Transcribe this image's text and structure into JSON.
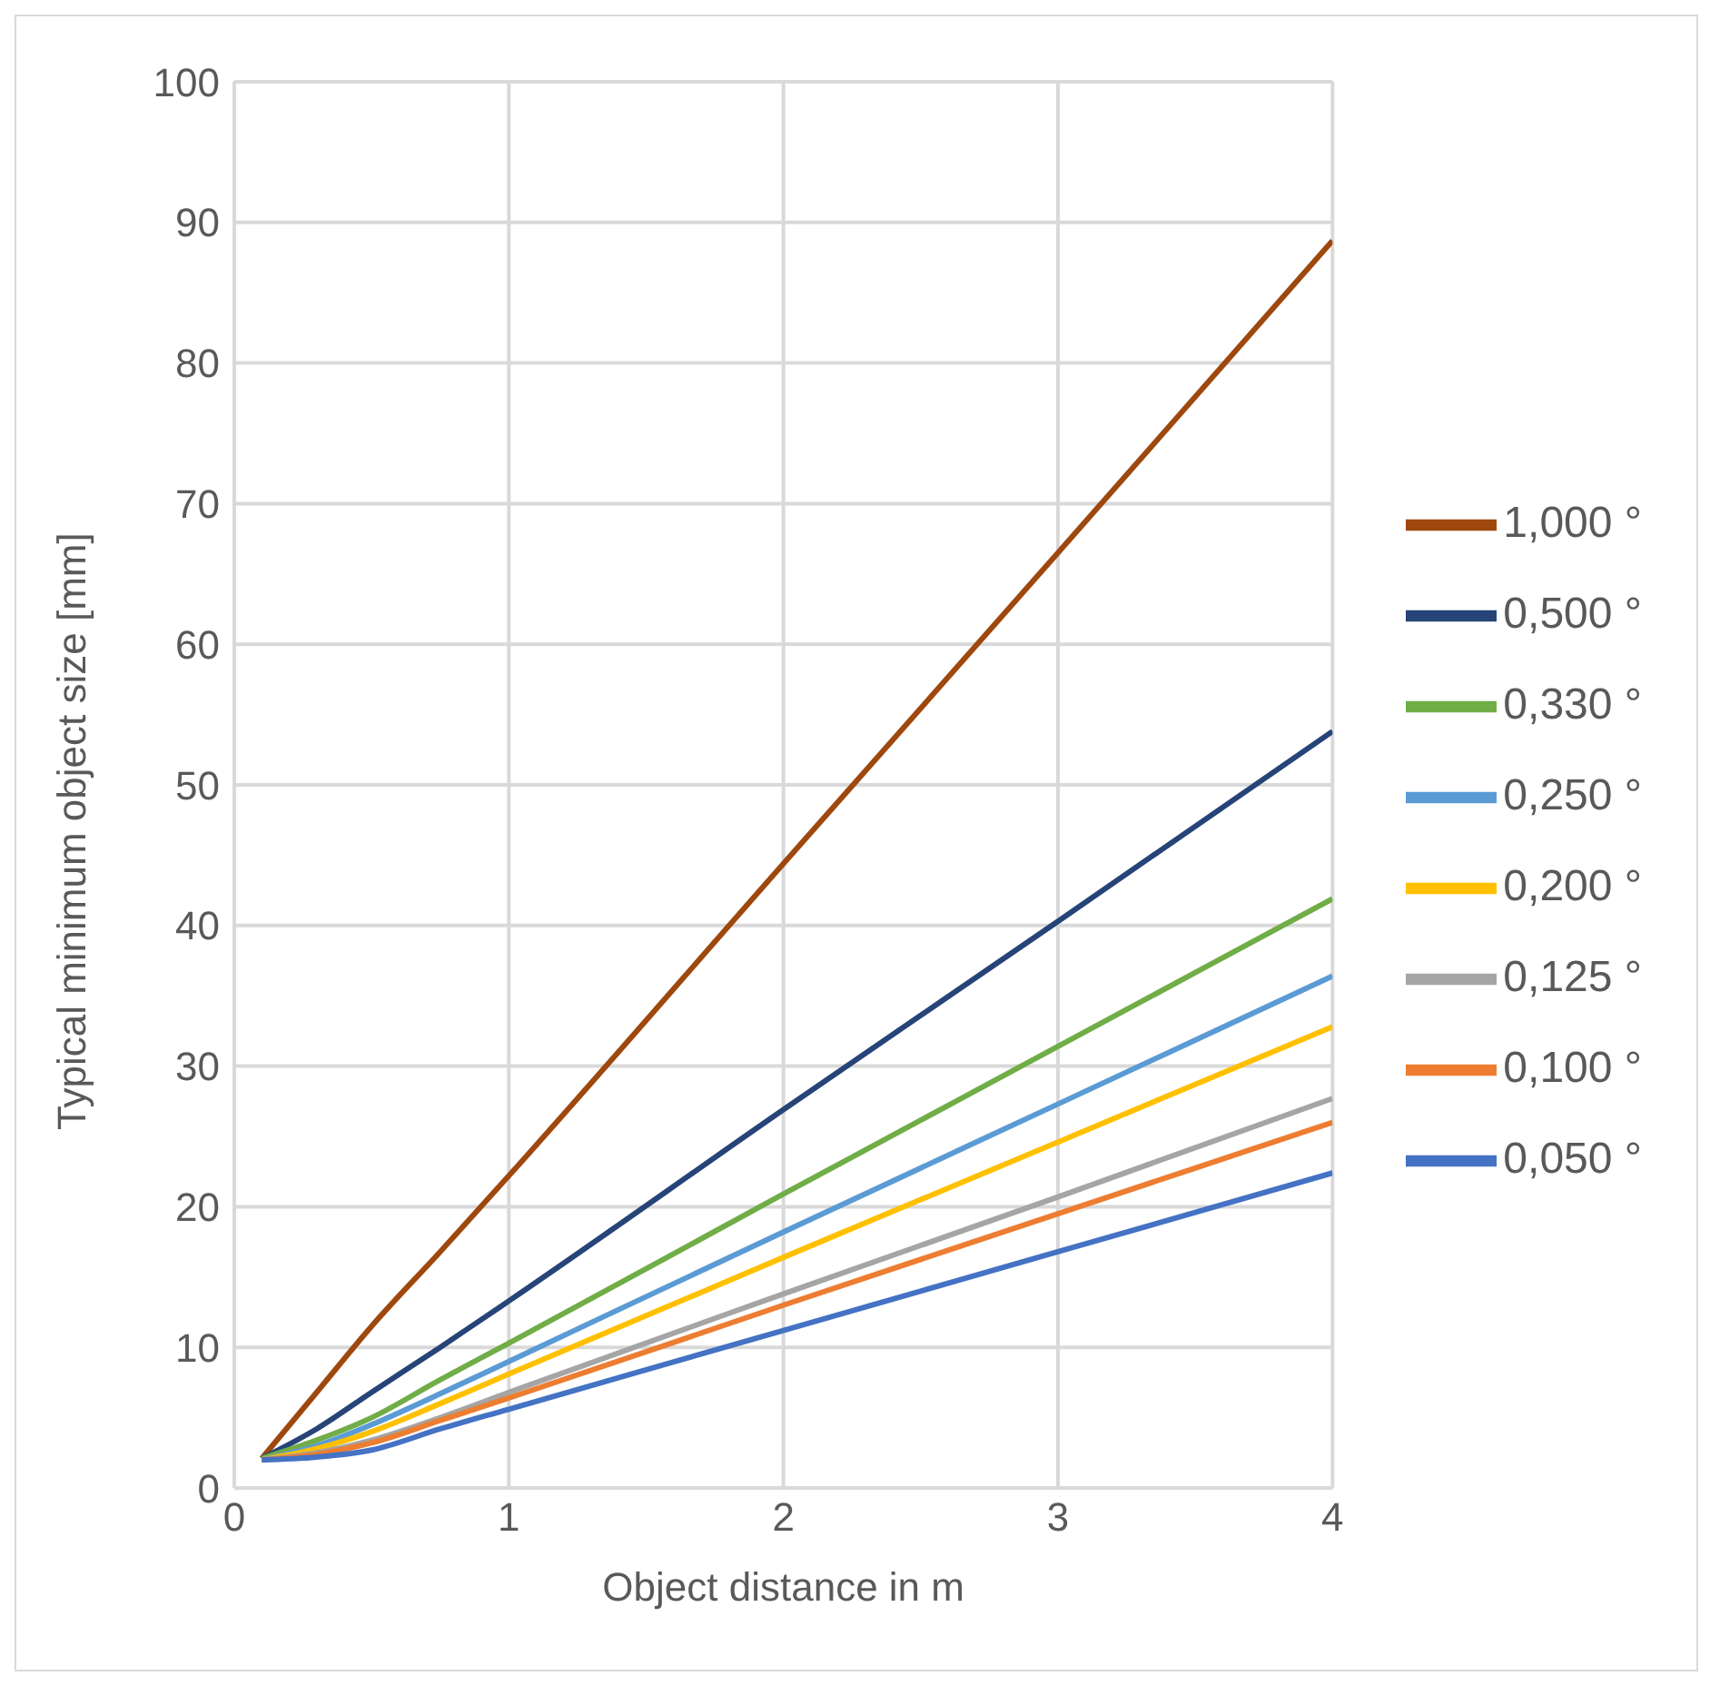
{
  "chart_data": {
    "type": "line",
    "xlabel": "Object distance in m",
    "ylabel": "Typical minimum object size [mm]",
    "x": [
      0.1,
      0.3,
      0.5,
      0.75,
      1,
      2,
      3,
      4
    ],
    "series": [
      {
        "name": "1,000 °",
        "color": "#9e480e",
        "values": [
          2.1,
          6.8,
          11.5,
          16.8,
          22.2,
          44.4,
          66.5,
          88.7
        ]
      },
      {
        "name": "0,500 °",
        "color": "#264478",
        "values": [
          2.1,
          4.2,
          6.8,
          10.0,
          13.3,
          26.9,
          40.3,
          53.8
        ]
      },
      {
        "name": "0,330 °",
        "color": "#70ad47",
        "values": [
          2.1,
          3.4,
          5.0,
          7.7,
          10.3,
          20.9,
          31.4,
          41.9
        ]
      },
      {
        "name": "0,250 °",
        "color": "#5b9bd5",
        "values": [
          2.0,
          3.0,
          4.5,
          6.7,
          9.0,
          18.2,
          27.3,
          36.4
        ]
      },
      {
        "name": "0,200 °",
        "color": "#ffc000",
        "values": [
          2.0,
          2.8,
          4.0,
          6.0,
          8.1,
          16.4,
          24.6,
          32.8
        ]
      },
      {
        "name": "0,125 °",
        "color": "#a5a5a5",
        "values": [
          2.0,
          2.5,
          3.4,
          5.0,
          6.8,
          13.8,
          20.7,
          27.7
        ]
      },
      {
        "name": "0,100 °",
        "color": "#ed7d31",
        "values": [
          2.0,
          2.4,
          3.2,
          4.8,
          6.4,
          13.0,
          19.5,
          26.0
        ]
      },
      {
        "name": "0,050 °",
        "color": "#4472c4",
        "values": [
          2.0,
          2.2,
          2.7,
          4.2,
          5.6,
          11.2,
          16.8,
          22.4
        ]
      }
    ],
    "xlim": [
      0,
      4
    ],
    "xticks": [
      0,
      1,
      2,
      3,
      4
    ],
    "ylim": [
      0,
      100
    ],
    "yticks": [
      0,
      10,
      20,
      30,
      40,
      50,
      60,
      70,
      80,
      90,
      100
    ],
    "grid": true,
    "legend": "right",
    "marker": "none",
    "line_style": "solid"
  }
}
